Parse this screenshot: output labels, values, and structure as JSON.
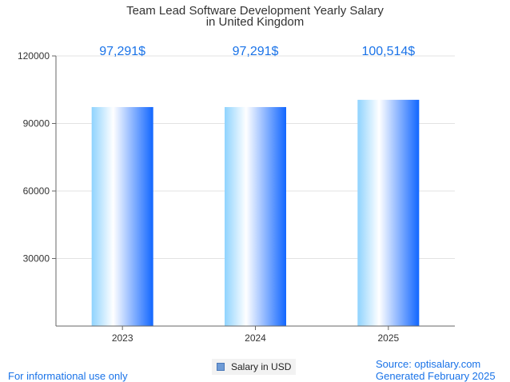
{
  "chart_data": {
    "type": "bar",
    "title_lines": [
      "Team Lead Software Development Yearly Salary",
      "in United Kingdom"
    ],
    "categories": [
      "2023",
      "2024",
      "2025"
    ],
    "series": [
      {
        "name": "Salary in USD",
        "values": [
          97291,
          97291,
          100514
        ]
      }
    ],
    "data_labels": [
      "97,291$",
      "97,291$",
      "100,514$"
    ],
    "y_ticks": [
      "30000",
      "60000",
      "90000",
      "120000"
    ],
    "y_tick_values": [
      30000,
      60000,
      90000,
      120000
    ],
    "ylim": [
      0,
      120000
    ],
    "grid": true,
    "legend_position": "bottom-center",
    "colors": {
      "bar_light": "#ffffff",
      "bar_mid": "#8fd3fe",
      "bar_dark": "#1166ff",
      "label": "#1a73e8"
    }
  },
  "footer": {
    "left": "For informational use only",
    "source": "Source: optisalary.com",
    "generated": "Generated February 2025"
  }
}
